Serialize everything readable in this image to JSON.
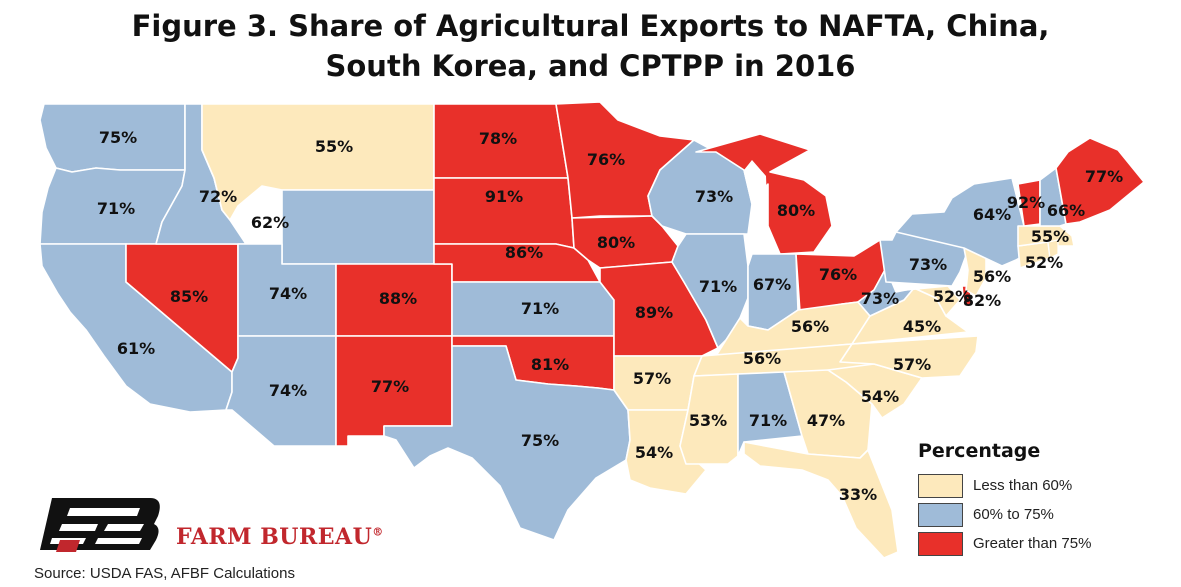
{
  "title": {
    "line1": "Figure 3. Share of Agricultural Exports to NAFTA, China,",
    "line2": "South Korea, and CPTPP in 2016"
  },
  "colors": {
    "low": "#fde9bc",
    "mid": "#9fbbd8",
    "high": "#e8302a",
    "border": "#ffffff",
    "water": "#ffffff"
  },
  "legend": {
    "title": "Percentage",
    "items": [
      {
        "label": "Less than 60%",
        "class": "low"
      },
      {
        "label": "60% to 75%",
        "class": "mid"
      },
      {
        "label": "Greater than 75%",
        "class": "high"
      }
    ]
  },
  "states": [
    {
      "abbr": "WA",
      "value": 75,
      "label": "75%",
      "class": "mid"
    },
    {
      "abbr": "OR",
      "value": 71,
      "label": "71%",
      "class": "mid"
    },
    {
      "abbr": "CA",
      "value": 61,
      "label": "61%",
      "class": "mid"
    },
    {
      "abbr": "NV",
      "value": 85,
      "label": "85%",
      "class": "high"
    },
    {
      "abbr": "ID",
      "value": 72,
      "label": "72%",
      "class": "mid"
    },
    {
      "abbr": "MT",
      "value": 55,
      "label": "55%",
      "class": "low"
    },
    {
      "abbr": "WY",
      "value": 62,
      "label": "62%",
      "class": "mid"
    },
    {
      "abbr": "UT",
      "value": 74,
      "label": "74%",
      "class": "mid"
    },
    {
      "abbr": "AZ",
      "value": 74,
      "label": "74%",
      "class": "mid"
    },
    {
      "abbr": "CO",
      "value": 88,
      "label": "88%",
      "class": "high"
    },
    {
      "abbr": "NM",
      "value": 77,
      "label": "77%",
      "class": "high"
    },
    {
      "abbr": "ND",
      "value": 78,
      "label": "78%",
      "class": "high"
    },
    {
      "abbr": "SD",
      "value": 91,
      "label": "91%",
      "class": "high"
    },
    {
      "abbr": "NE",
      "value": 86,
      "label": "86%",
      "class": "high"
    },
    {
      "abbr": "KS",
      "value": 71,
      "label": "71%",
      "class": "mid"
    },
    {
      "abbr": "OK",
      "value": 81,
      "label": "81%",
      "class": "high"
    },
    {
      "abbr": "TX",
      "value": 75,
      "label": "75%",
      "class": "mid"
    },
    {
      "abbr": "MN",
      "value": 76,
      "label": "76%",
      "class": "high"
    },
    {
      "abbr": "IA",
      "value": 80,
      "label": "80%",
      "class": "high"
    },
    {
      "abbr": "MO",
      "value": 89,
      "label": "89%",
      "class": "high"
    },
    {
      "abbr": "AR",
      "value": 57,
      "label": "57%",
      "class": "low"
    },
    {
      "abbr": "LA",
      "value": 54,
      "label": "54%",
      "class": "low"
    },
    {
      "abbr": "WI",
      "value": 73,
      "label": "73%",
      "class": "mid"
    },
    {
      "abbr": "IL",
      "value": 71,
      "label": "71%",
      "class": "mid"
    },
    {
      "abbr": "MI",
      "value": 80,
      "label": "80%",
      "class": "high"
    },
    {
      "abbr": "IN",
      "value": 67,
      "label": "67%",
      "class": "mid"
    },
    {
      "abbr": "OH",
      "value": 76,
      "label": "76%",
      "class": "high"
    },
    {
      "abbr": "KY",
      "value": 56,
      "label": "56%",
      "class": "low"
    },
    {
      "abbr": "TN",
      "value": 56,
      "label": "56%",
      "class": "low"
    },
    {
      "abbr": "MS",
      "value": 53,
      "label": "53%",
      "class": "low"
    },
    {
      "abbr": "AL",
      "value": 71,
      "label": "71%",
      "class": "mid"
    },
    {
      "abbr": "GA",
      "value": 47,
      "label": "47%",
      "class": "low"
    },
    {
      "abbr": "FL",
      "value": 33,
      "label": "33%",
      "class": "low"
    },
    {
      "abbr": "SC",
      "value": 54,
      "label": "54%",
      "class": "low"
    },
    {
      "abbr": "NC",
      "value": 57,
      "label": "57%",
      "class": "low"
    },
    {
      "abbr": "VA",
      "value": 45,
      "label": "45%",
      "class": "low"
    },
    {
      "abbr": "WV",
      "value": 73,
      "label": "73%",
      "class": "mid"
    },
    {
      "abbr": "MD",
      "value": 52,
      "label": "52%",
      "class": "low"
    },
    {
      "abbr": "DE",
      "value": 82,
      "label": "82%",
      "class": "high"
    },
    {
      "abbr": "PA",
      "value": 73,
      "label": "73%",
      "class": "mid"
    },
    {
      "abbr": "NJ",
      "value": 56,
      "label": "56%",
      "class": "low"
    },
    {
      "abbr": "NY",
      "value": 64,
      "label": "64%",
      "class": "mid"
    },
    {
      "abbr": "CT",
      "value": 52,
      "label": "52%",
      "class": "low"
    },
    {
      "abbr": "MA",
      "value": 55,
      "label": "55%",
      "class": "low"
    },
    {
      "abbr": "VT",
      "value": 92,
      "label": "92%",
      "class": "high"
    },
    {
      "abbr": "NH",
      "value": 66,
      "label": "66%",
      "class": "mid"
    },
    {
      "abbr": "ME",
      "value": 77,
      "label": "77%",
      "class": "high"
    }
  ],
  "brand": {
    "name": "FARM BUREAU",
    "mark": "®"
  },
  "source": "Source: USDA FAS, AFBF Calculations"
}
